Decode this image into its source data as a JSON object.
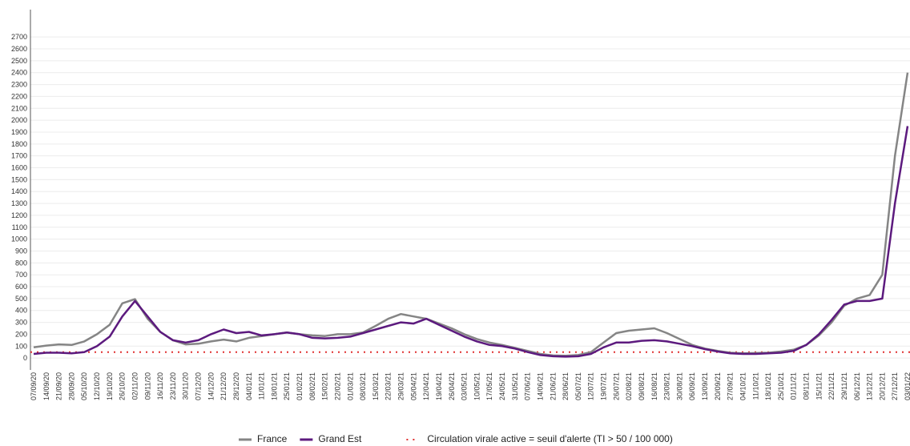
{
  "chart_data": {
    "type": "line",
    "categories": [
      "07/09/20",
      "14/09/20",
      "21/09/20",
      "28/09/20",
      "05/10/20",
      "12/10/20",
      "19/10/20",
      "26/10/20",
      "02/11/20",
      "09/11/20",
      "16/11/20",
      "23/11/20",
      "30/11/20",
      "07/12/20",
      "14/12/20",
      "21/12/20",
      "28/12/20",
      "04/01/21",
      "11/01/21",
      "18/01/21",
      "25/01/21",
      "01/02/21",
      "08/02/21",
      "15/02/21",
      "22/02/21",
      "01/03/21",
      "08/03/21",
      "15/03/21",
      "22/03/21",
      "29/03/21",
      "05/04/21",
      "12/04/21",
      "19/04/21",
      "26/04/21",
      "03/05/21",
      "10/05/21",
      "17/05/21",
      "24/05/21",
      "31/05/21",
      "07/06/21",
      "14/06/21",
      "21/06/21",
      "28/06/21",
      "05/07/21",
      "12/07/21",
      "19/07/21",
      "26/07/21",
      "02/08/21",
      "09/08/21",
      "16/08/21",
      "23/08/21",
      "30/08/21",
      "06/09/21",
      "13/09/21",
      "20/09/21",
      "27/09/21",
      "04/10/21",
      "11/10/21",
      "18/10/21",
      "25/10/21",
      "01/11/21",
      "08/11/21",
      "15/11/21",
      "22/11/21",
      "29/11/21",
      "06/12/21",
      "13/12/21",
      "20/12/21",
      "27/12/21",
      "03/01/22"
    ],
    "series": [
      {
        "name": "France",
        "color": "#858585",
        "values": [
          90,
          105,
          115,
          110,
          140,
          200,
          280,
          460,
          495,
          330,
          220,
          150,
          115,
          120,
          140,
          155,
          140,
          170,
          185,
          200,
          215,
          200,
          190,
          185,
          200,
          200,
          215,
          270,
          330,
          370,
          350,
          330,
          290,
          250,
          200,
          160,
          130,
          110,
          85,
          60,
          35,
          22,
          20,
          25,
          50,
          130,
          210,
          230,
          240,
          250,
          210,
          160,
          110,
          80,
          60,
          45,
          40,
          42,
          45,
          55,
          70,
          110,
          190,
          300,
          440,
          500,
          530,
          700,
          1700,
          2400
        ]
      },
      {
        "name": "Grand Est",
        "color": "#5c1a7e",
        "values": [
          35,
          45,
          45,
          40,
          50,
          100,
          180,
          350,
          480,
          350,
          220,
          150,
          130,
          150,
          200,
          240,
          210,
          220,
          190,
          200,
          215,
          200,
          170,
          165,
          170,
          180,
          210,
          240,
          270,
          300,
          290,
          330,
          280,
          230,
          180,
          140,
          110,
          100,
          80,
          50,
          25,
          15,
          12,
          15,
          35,
          90,
          130,
          130,
          145,
          150,
          140,
          120,
          100,
          75,
          55,
          40,
          35,
          35,
          40,
          45,
          60,
          110,
          200,
          320,
          450,
          480,
          480,
          500,
          1300,
          1950
        ]
      }
    ],
    "threshold": {
      "value": 50,
      "label": "Circulation virale active = seuil d'alerte (TI > 50 / 100 000)",
      "color": "#e03030"
    },
    "ylim": [
      -100,
      2930
    ],
    "yticks": [
      0,
      100,
      200,
      300,
      400,
      500,
      600,
      700,
      800,
      900,
      1000,
      1100,
      1200,
      1300,
      1400,
      1500,
      1600,
      1700,
      1800,
      1900,
      2000,
      2100,
      2200,
      2300,
      2400,
      2500,
      2600,
      2700
    ],
    "grid": true
  }
}
